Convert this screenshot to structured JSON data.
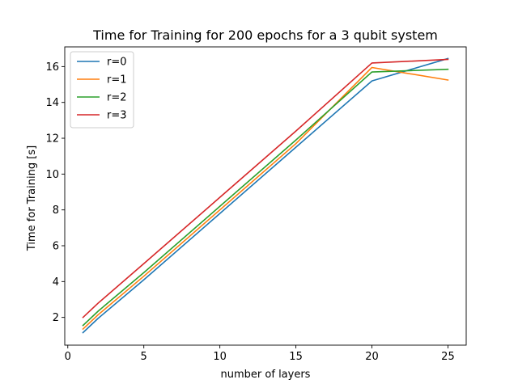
{
  "chart_data": {
    "type": "line",
    "title": "Time for Training for 200 epochs for a 3 qubit system",
    "xlabel": "number of layers",
    "ylabel": "Time for Training [s]",
    "x": [
      1,
      2,
      5,
      10,
      15,
      20,
      25
    ],
    "xlim": [
      -0.2,
      26.2
    ],
    "ylim": [
      0.45,
      17.1
    ],
    "xticks": [
      0,
      5,
      10,
      15,
      20,
      25
    ],
    "yticks": [
      2,
      4,
      6,
      8,
      10,
      12,
      14,
      16
    ],
    "grid": false,
    "legend_position": "top-left",
    "series": [
      {
        "name": "r=0",
        "color": "#1f77b4",
        "values": [
          1.15,
          1.95,
          4.1,
          7.8,
          11.5,
          15.2,
          16.45
        ]
      },
      {
        "name": "r=1",
        "color": "#ff7f0e",
        "values": [
          1.35,
          2.15,
          4.3,
          8.0,
          11.7,
          15.95,
          15.25
        ]
      },
      {
        "name": "r=2",
        "color": "#2ca02c",
        "values": [
          1.55,
          2.35,
          4.5,
          8.2,
          11.9,
          15.7,
          15.85
        ]
      },
      {
        "name": "r=3",
        "color": "#d62728",
        "values": [
          2.0,
          2.8,
          5.0,
          8.7,
          12.4,
          16.2,
          16.4
        ]
      }
    ]
  }
}
